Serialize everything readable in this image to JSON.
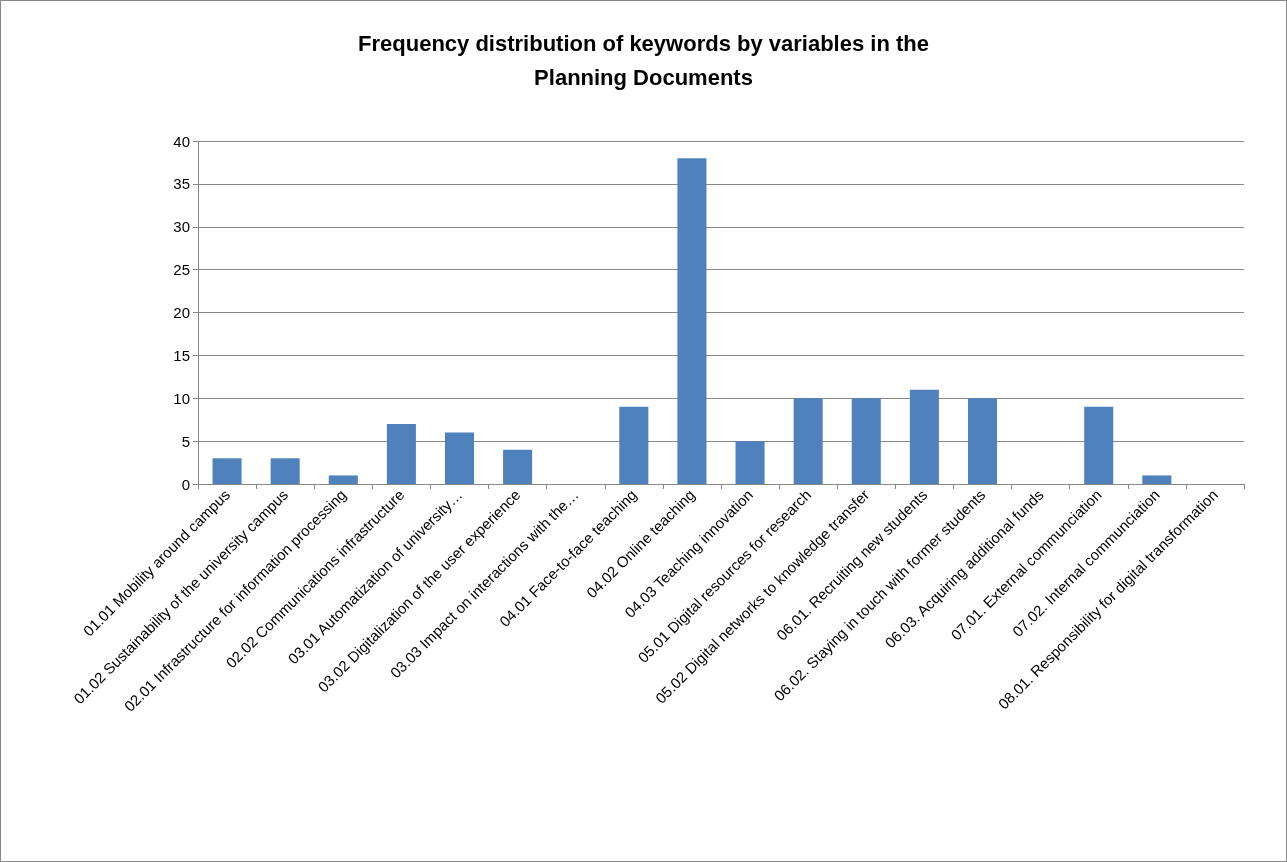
{
  "chart_data": {
    "type": "bar",
    "title": "Frequency distribution of keywords by variables in the\nPlanning Documents",
    "categories": [
      "01.01 Mobility around campus",
      "01.02 Sustainability of the university campus",
      "02.01 Infrastructure for information processing",
      "02.02 Communications infrastructure",
      "03.01 Automatization of university…",
      "03.02 Digitalization of the user experience",
      "03.03 Impact on interactions with the…",
      "04.01 Face-to-face teaching",
      "04.02 Online teaching",
      "04.03 Teaching innovation",
      "05.01 Digital resources for research",
      "05.02 Digital networks to knowledge transfer",
      "06.01. Recruiting new students",
      "06.02. Staying in touch with former students",
      "06.03. Acquiring additional funds",
      "07.01. External communciation",
      "07.02. Internal communciation",
      "08.01. Responsibility for digital transformation"
    ],
    "values": [
      3,
      3,
      1,
      7,
      6,
      4,
      0,
      9,
      38,
      5,
      10,
      10,
      11,
      10,
      0,
      9,
      1,
      0
    ],
    "color": "#4f81bd",
    "ylim": [
      0,
      40
    ],
    "yticks": [
      0,
      5,
      10,
      15,
      20,
      25,
      30,
      35,
      40
    ],
    "grid": "y"
  }
}
